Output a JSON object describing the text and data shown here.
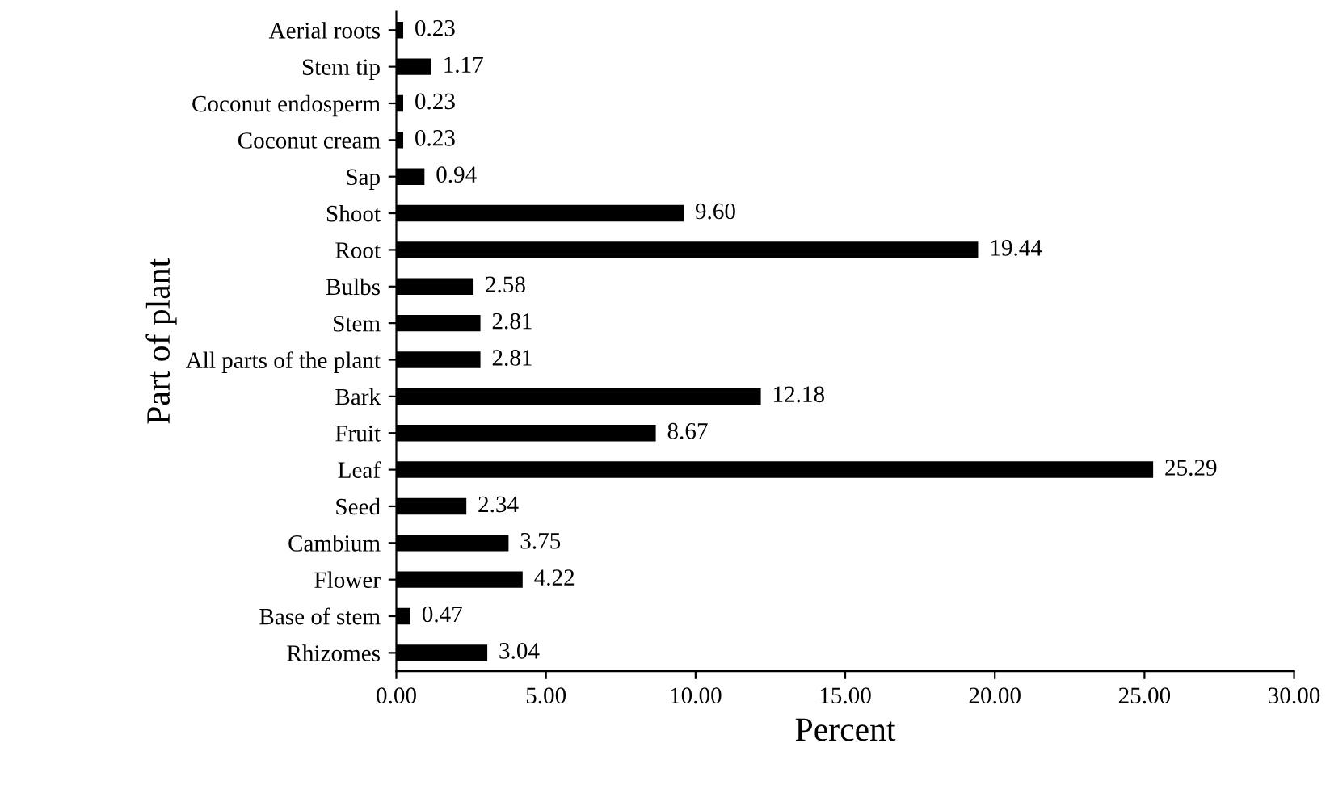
{
  "chart_data": {
    "type": "bar",
    "orientation": "horizontal",
    "xlabel": "Percent",
    "ylabel": "Part of plant",
    "categories": [
      "Aerial roots",
      "Stem tip",
      "Coconut endosperm",
      "Coconut cream",
      "Sap",
      "Shoot",
      "Root",
      "Bulbs",
      "Stem",
      "All parts of the plant",
      "Bark",
      "Fruit",
      "Leaf",
      "Seed",
      "Cambium",
      "Flower",
      "Base of stem",
      "Rhizomes"
    ],
    "values": [
      0.23,
      1.17,
      0.23,
      0.23,
      0.94,
      9.6,
      19.44,
      2.58,
      2.81,
      2.81,
      12.18,
      8.67,
      25.29,
      2.34,
      3.75,
      4.22,
      0.47,
      3.04
    ],
    "value_labels": [
      "0.23",
      "1.17",
      "0.23",
      "0.23",
      "0.94",
      "9.60",
      "19.44",
      "2.58",
      "2.81",
      "2.81",
      "12.18",
      "8.67",
      "25.29",
      "2.34",
      "3.75",
      "4.22",
      "0.47",
      "3.04"
    ],
    "color": "#000000",
    "xlim": [
      0,
      30
    ],
    "xticks": [
      {
        "value": 0,
        "label": "0.00"
      },
      {
        "value": 5,
        "label": "5.00"
      },
      {
        "value": 10,
        "label": "10.00"
      },
      {
        "value": 15,
        "label": "15.00"
      },
      {
        "value": 20,
        "label": "20.00"
      },
      {
        "value": 25,
        "label": "25.00"
      },
      {
        "value": 30,
        "label": "30.00"
      }
    ],
    "grid": false,
    "legend": false
  }
}
